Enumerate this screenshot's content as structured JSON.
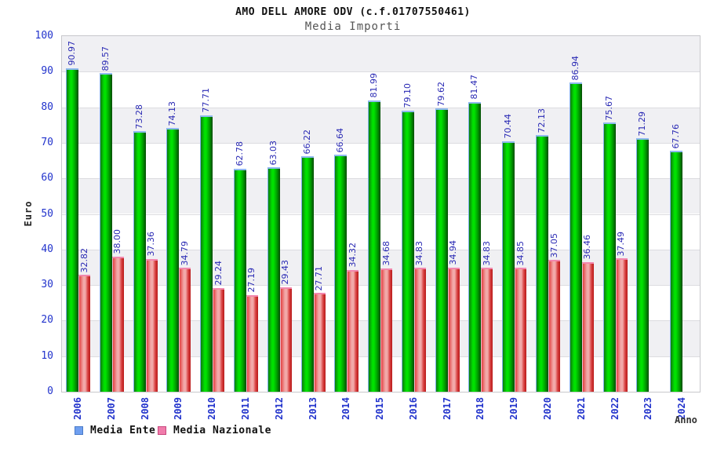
{
  "header": {
    "title": "AMO DELL AMORE ODV (c.f.01707550461)",
    "subtitle": "Media Importi"
  },
  "chart_data": {
    "type": "bar",
    "title": "AMO DELL AMORE ODV (c.f.01707550461)",
    "subtitle": "Media Importi",
    "xlabel": "Anno",
    "ylabel": "Euro",
    "ylim": [
      0,
      100
    ],
    "ytick_step": 10,
    "grid": "horizontal-bands",
    "legend_position": "bottom-left",
    "categories": [
      "2006",
      "2007",
      "2008",
      "2009",
      "2010",
      "2011",
      "2012",
      "2013",
      "2014",
      "2015",
      "2016",
      "2017",
      "2018",
      "2019",
      "2020",
      "2021",
      "2022",
      "2023",
      "2024"
    ],
    "series": [
      {
        "name": "Media Ente",
        "values": [
          90.97,
          89.57,
          73.28,
          74.13,
          77.71,
          62.78,
          63.03,
          66.22,
          66.64,
          81.99,
          79.1,
          79.62,
          81.47,
          70.44,
          72.13,
          86.94,
          75.67,
          71.29,
          67.76
        ]
      },
      {
        "name": "Media Nazionale",
        "values": [
          32.82,
          38.0,
          37.36,
          34.79,
          29.24,
          27.19,
          29.43,
          27.71,
          34.32,
          34.68,
          34.83,
          34.94,
          34.83,
          34.85,
          37.05,
          36.46,
          37.49,
          null,
          null
        ]
      }
    ],
    "legend": [
      {
        "label": "Media Ente"
      },
      {
        "label": "Media Nazionale"
      }
    ]
  },
  "colors": {
    "value_label": "#2a2ab4",
    "tick_label": "#2233cc",
    "band_gray": "#f0f0f3",
    "band_white": "#ffffff",
    "grid_line": "#dcdce0",
    "plot_border": "#c8c8cc",
    "green_edge_left": "#0d7c0d",
    "green_mid": "#00e100",
    "green_edge_right": "#034b03",
    "green_cap": "#8fb9ef",
    "green_highlight": "#7fb0e8",
    "red_edge_left": "#e34141",
    "red_mid": "#f2a9a9",
    "red_edge_right": "#b81a1a",
    "red_cap": "#f287ae",
    "red_highlight": "#f6bcd0",
    "legend_ente_fill": "#6f9ff0",
    "legend_ente_border": "#4a7bc8",
    "legend_nazionale_fill": "#f07cab",
    "legend_nazionale_border": "#c8477e"
  }
}
